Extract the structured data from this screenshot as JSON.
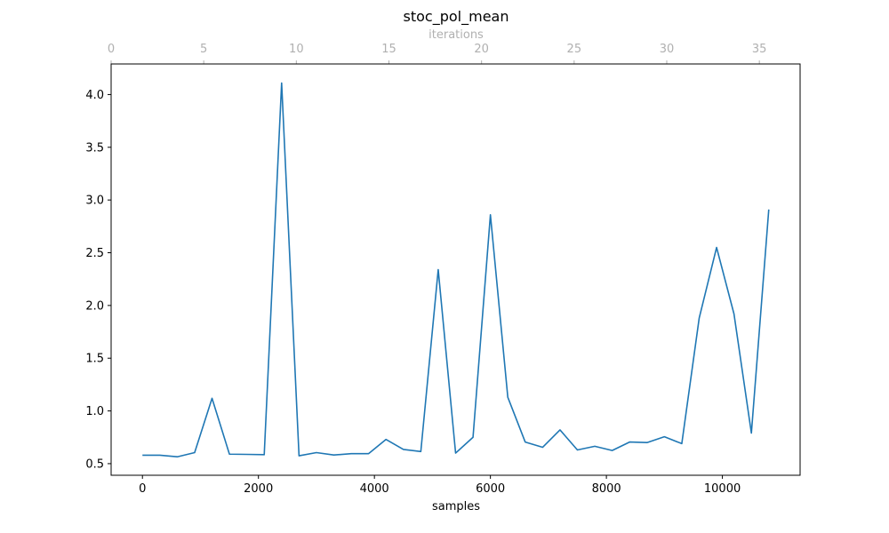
{
  "chart_data": {
    "type": "line",
    "title": "stoc_pol_mean",
    "xlabel": "samples",
    "ylabel": "",
    "top_xlabel": "iterations",
    "xlim": [
      -540,
      11340
    ],
    "ylim": [
      0.39,
      4.29
    ],
    "top_xlim": [
      0,
      37.2
    ],
    "x_ticks": [
      0,
      2000,
      4000,
      6000,
      8000,
      10000
    ],
    "x_tick_labels": [
      "0",
      "2000",
      "4000",
      "6000",
      "8000",
      "10000"
    ],
    "y_ticks": [
      0.5,
      1.0,
      1.5,
      2.0,
      2.5,
      3.0,
      3.5,
      4.0
    ],
    "y_tick_labels": [
      "0.5",
      "1.0",
      "1.5",
      "2.0",
      "2.5",
      "3.0",
      "3.5",
      "4.0"
    ],
    "top_x_ticks": [
      0,
      5,
      10,
      15,
      20,
      25,
      30,
      35
    ],
    "top_x_tick_labels": [
      "0",
      "5",
      "10",
      "15",
      "20",
      "25",
      "30",
      "35"
    ],
    "grid": false,
    "colors": {
      "line": "#1f77b4",
      "top_axis": "#b0b0b0",
      "axes": "#000000"
    },
    "series": [
      {
        "x": [
          0,
          300,
          600,
          900,
          1200,
          1500,
          1800,
          2100,
          2400,
          2700,
          3000,
          3300,
          3600,
          3900,
          4200,
          4500,
          4800,
          5100,
          5400,
          5700,
          6000,
          6300,
          6600,
          6900,
          7200,
          7500,
          7800,
          8100,
          8400,
          8700,
          9000,
          9300,
          9600,
          9900,
          10200,
          10500,
          10800
        ],
        "values": [
          0.58,
          0.58,
          0.565,
          0.605,
          1.12,
          0.59,
          0.588,
          0.585,
          4.11,
          0.575,
          0.605,
          0.582,
          0.595,
          0.595,
          0.73,
          0.635,
          0.615,
          2.34,
          0.6,
          0.75,
          2.86,
          1.13,
          0.705,
          0.655,
          0.82,
          0.63,
          0.665,
          0.625,
          0.705,
          0.7,
          0.755,
          0.69,
          1.88,
          2.55,
          1.92,
          0.79,
          2.91
        ]
      }
    ]
  }
}
